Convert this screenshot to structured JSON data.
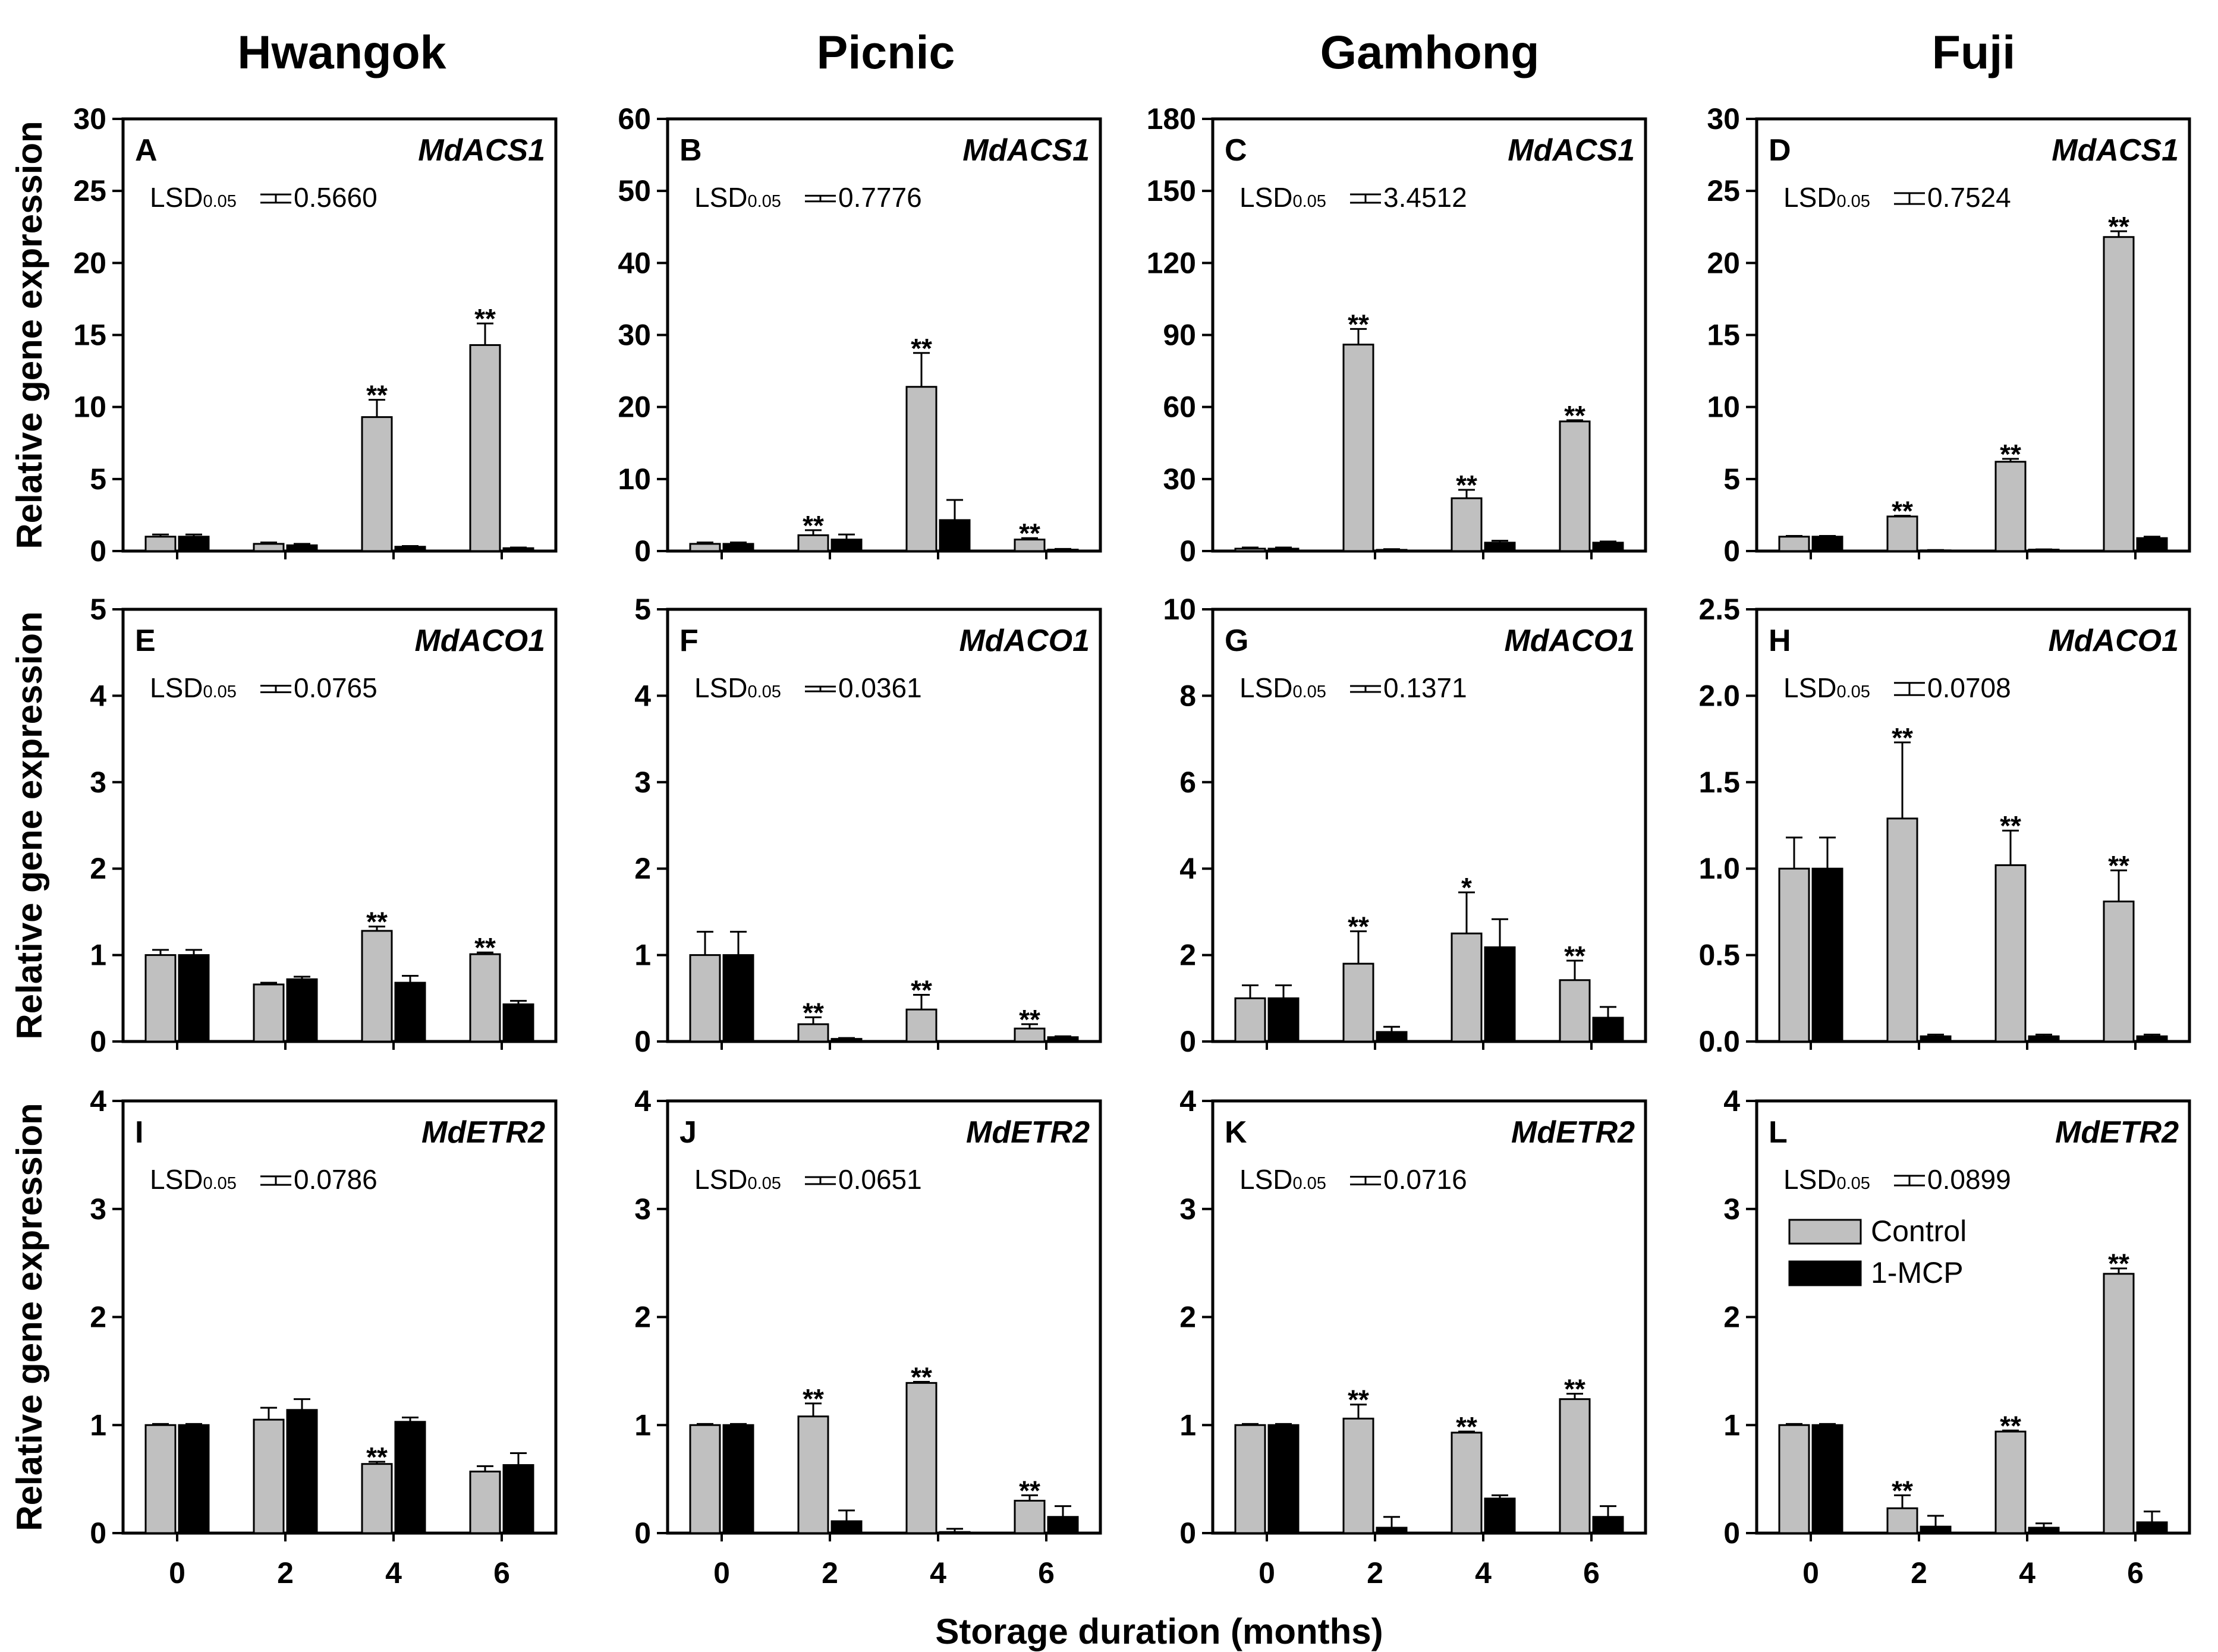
{
  "figure": {
    "column_titles": [
      "Hwangok",
      "Picnic",
      "Gamhong",
      "Fuji"
    ],
    "ylabel": "Relative gene expression",
    "xlabel": "Storage duration (months)",
    "lsd_prefix": "LSD",
    "lsd_subscript": "0.05",
    "colors": {
      "control": "#c0c0c0",
      "mcp": "#000000"
    }
  },
  "legend": {
    "placement": "panel L, upper-left inside plot",
    "entries": [
      {
        "name": "Control",
        "color": "#c0c0c0"
      },
      {
        "name": "1-MCP",
        "color": "#000000"
      }
    ]
  },
  "chart_data": [
    {
      "type": "bar",
      "panel": "A",
      "cultivar": "Hwangok",
      "gene": "MdACS1",
      "lsd": "0.5660",
      "lsd_value": 0.566,
      "categories": [
        "0",
        "2",
        "4",
        "6"
      ],
      "ylim": [
        0,
        30
      ],
      "yticks": [
        0,
        5,
        10,
        15,
        20,
        25,
        30
      ],
      "series": [
        {
          "name": "Control",
          "values": [
            1.0,
            0.5,
            9.3,
            14.3
          ],
          "errors": [
            0.15,
            0.1,
            1.2,
            1.5
          ],
          "stars": [
            "",
            "",
            "**",
            "**"
          ]
        },
        {
          "name": "1-MCP",
          "values": [
            1.0,
            0.4,
            0.3,
            0.2
          ],
          "errors": [
            0.15,
            0.1,
            0.05,
            0.05
          ],
          "stars": [
            "",
            "",
            "",
            ""
          ]
        }
      ]
    },
    {
      "type": "bar",
      "panel": "B",
      "cultivar": "Picnic",
      "gene": "MdACS1",
      "lsd": "0.7776",
      "lsd_value": 0.7776,
      "categories": [
        "0",
        "2",
        "4",
        "6"
      ],
      "ylim": [
        0,
        60
      ],
      "yticks": [
        0,
        10,
        20,
        30,
        40,
        50,
        60
      ],
      "series": [
        {
          "name": "Control",
          "values": [
            1.0,
            2.2,
            22.8,
            1.6
          ],
          "errors": [
            0.2,
            0.7,
            4.7,
            0.2
          ],
          "stars": [
            "",
            "**",
            "**",
            "**"
          ]
        },
        {
          "name": "1-MCP",
          "values": [
            1.0,
            1.6,
            4.3,
            0.2
          ],
          "errors": [
            0.2,
            0.7,
            2.8,
            0.1
          ],
          "stars": [
            "",
            "",
            "",
            ""
          ]
        }
      ]
    },
    {
      "type": "bar",
      "panel": "C",
      "cultivar": "Gamhong",
      "gene": "MdACS1",
      "lsd": "3.4512",
      "lsd_value": 3.4512,
      "categories": [
        "0",
        "2",
        "4",
        "6"
      ],
      "ylim": [
        0,
        180
      ],
      "yticks": [
        0,
        30,
        60,
        90,
        120,
        150,
        180
      ],
      "series": [
        {
          "name": "Control",
          "values": [
            1.0,
            86.0,
            22.0,
            54.0
          ],
          "errors": [
            0.5,
            6.5,
            3.5,
            0.5
          ],
          "stars": [
            "",
            "**",
            "**",
            "**"
          ]
        },
        {
          "name": "1-MCP",
          "values": [
            1.0,
            0.5,
            3.5,
            3.5
          ],
          "errors": [
            0.5,
            0.3,
            0.8,
            0.5
          ],
          "stars": [
            "",
            "",
            "",
            ""
          ]
        }
      ]
    },
    {
      "type": "bar",
      "panel": "D",
      "cultivar": "Fuji",
      "gene": "MdACS1",
      "lsd": "0.7524",
      "lsd_value": 0.7524,
      "categories": [
        "0",
        "2",
        "4",
        "6"
      ],
      "ylim": [
        0,
        30
      ],
      "yticks": [
        0,
        5,
        10,
        15,
        20,
        25,
        30
      ],
      "series": [
        {
          "name": "Control",
          "values": [
            1.0,
            2.4,
            6.2,
            21.8
          ],
          "errors": [
            0.05,
            0.05,
            0.2,
            0.4
          ],
          "stars": [
            "",
            "**",
            "**",
            "**"
          ]
        },
        {
          "name": "1-MCP",
          "values": [
            1.0,
            0.05,
            0.1,
            0.9
          ],
          "errors": [
            0.05,
            0.02,
            0.02,
            0.1
          ],
          "stars": [
            "",
            "",
            "",
            ""
          ]
        }
      ]
    },
    {
      "type": "bar",
      "panel": "E",
      "cultivar": "Hwangok",
      "gene": "MdACO1",
      "lsd": "0.0765",
      "lsd_value": 0.0765,
      "categories": [
        "0",
        "2",
        "4",
        "6"
      ],
      "ylim": [
        0,
        5
      ],
      "yticks": [
        0,
        1,
        2,
        3,
        4,
        5
      ],
      "series": [
        {
          "name": "Control",
          "values": [
            1.0,
            0.66,
            1.28,
            1.01
          ],
          "errors": [
            0.06,
            0.02,
            0.05,
            0.02
          ],
          "stars": [
            "",
            "",
            "**",
            "**"
          ]
        },
        {
          "name": "1-MCP",
          "values": [
            1.0,
            0.72,
            0.68,
            0.43
          ],
          "errors": [
            0.06,
            0.03,
            0.08,
            0.04
          ],
          "stars": [
            "",
            "",
            "",
            ""
          ]
        }
      ]
    },
    {
      "type": "bar",
      "panel": "F",
      "cultivar": "Picnic",
      "gene": "MdACO1",
      "lsd": "0.0361",
      "lsd_value": 0.0361,
      "categories": [
        "0",
        "2",
        "4",
        "6"
      ],
      "ylim": [
        0,
        5
      ],
      "yticks": [
        0,
        1,
        2,
        3,
        4,
        5
      ],
      "series": [
        {
          "name": "Control",
          "values": [
            1.0,
            0.2,
            0.37,
            0.15
          ],
          "errors": [
            0.27,
            0.08,
            0.17,
            0.05
          ],
          "stars": [
            "",
            "**",
            "**",
            "**"
          ]
        },
        {
          "name": "1-MCP",
          "values": [
            1.0,
            0.03,
            0.0,
            0.05
          ],
          "errors": [
            0.27,
            0.01,
            0.0,
            0.01
          ],
          "stars": [
            "",
            "",
            "",
            ""
          ]
        }
      ]
    },
    {
      "type": "bar",
      "panel": "G",
      "cultivar": "Gamhong",
      "gene": "MdACO1",
      "lsd": "0.1371",
      "lsd_value": 0.1371,
      "categories": [
        "0",
        "2",
        "4",
        "6"
      ],
      "ylim": [
        0,
        10
      ],
      "yticks": [
        0,
        2,
        4,
        6,
        8,
        10
      ],
      "series": [
        {
          "name": "Control",
          "values": [
            1.0,
            1.8,
            2.5,
            1.42
          ],
          "errors": [
            0.3,
            0.75,
            0.95,
            0.45
          ],
          "stars": [
            "",
            "**",
            "*",
            "**"
          ]
        },
        {
          "name": "1-MCP",
          "values": [
            1.0,
            0.22,
            2.18,
            0.55
          ],
          "errors": [
            0.3,
            0.12,
            0.65,
            0.25
          ],
          "stars": [
            "",
            "",
            "",
            ""
          ]
        }
      ]
    },
    {
      "type": "bar",
      "panel": "H",
      "cultivar": "Fuji",
      "gene": "MdACO1",
      "lsd": "0.0708",
      "lsd_value": 0.0708,
      "categories": [
        "0",
        "2",
        "4",
        "6"
      ],
      "ylim": [
        0,
        2.5
      ],
      "yticks": [
        "0.0",
        "0.5",
        "1.0",
        "1.5",
        "2.0",
        "2.5"
      ],
      "series": [
        {
          "name": "Control",
          "values": [
            1.0,
            1.29,
            1.02,
            0.81
          ],
          "errors": [
            0.18,
            0.44,
            0.2,
            0.18
          ],
          "stars": [
            "",
            "**",
            "**",
            "**"
          ]
        },
        {
          "name": "1-MCP",
          "values": [
            1.0,
            0.03,
            0.03,
            0.03
          ],
          "errors": [
            0.18,
            0.01,
            0.01,
            0.01
          ],
          "stars": [
            "",
            "",
            "",
            ""
          ]
        }
      ]
    },
    {
      "type": "bar",
      "panel": "I",
      "cultivar": "Hwangok",
      "gene": "MdETR2",
      "lsd": "0.0786",
      "lsd_value": 0.0786,
      "categories": [
        "0",
        "2",
        "4",
        "6"
      ],
      "ylim": [
        0,
        4
      ],
      "yticks": [
        0,
        1,
        2,
        3,
        4
      ],
      "series": [
        {
          "name": "Control",
          "values": [
            1.0,
            1.05,
            0.64,
            0.57
          ],
          "errors": [
            0.01,
            0.11,
            0.02,
            0.05
          ],
          "stars": [
            "",
            "",
            "**",
            ""
          ]
        },
        {
          "name": "1-MCP",
          "values": [
            1.0,
            1.14,
            1.03,
            0.63
          ],
          "errors": [
            0.01,
            0.1,
            0.04,
            0.11
          ],
          "stars": [
            "",
            "",
            "",
            ""
          ]
        }
      ]
    },
    {
      "type": "bar",
      "panel": "J",
      "cultivar": "Picnic",
      "gene": "MdETR2",
      "lsd": "0.0651",
      "lsd_value": 0.0651,
      "categories": [
        "0",
        "2",
        "4",
        "6"
      ],
      "ylim": [
        0,
        4
      ],
      "yticks": [
        0,
        1,
        2,
        3,
        4
      ],
      "series": [
        {
          "name": "Control",
          "values": [
            1.0,
            1.08,
            1.39,
            0.3
          ],
          "errors": [
            0.01,
            0.12,
            0.01,
            0.05
          ],
          "stars": [
            "",
            "**",
            "**",
            "**"
          ]
        },
        {
          "name": "1-MCP",
          "values": [
            1.0,
            0.11,
            0.01,
            0.15
          ],
          "errors": [
            0.01,
            0.1,
            0.03,
            0.1
          ],
          "stars": [
            "",
            "",
            "",
            ""
          ]
        }
      ]
    },
    {
      "type": "bar",
      "panel": "K",
      "cultivar": "Gamhong",
      "gene": "MdETR2",
      "lsd": "0.0716",
      "lsd_value": 0.0716,
      "categories": [
        "0",
        "2",
        "4",
        "6"
      ],
      "ylim": [
        0,
        4
      ],
      "yticks": [
        0,
        1,
        2,
        3,
        4
      ],
      "series": [
        {
          "name": "Control",
          "values": [
            1.0,
            1.06,
            0.93,
            1.24
          ],
          "errors": [
            0.01,
            0.13,
            0.01,
            0.05
          ],
          "stars": [
            "",
            "**",
            "**",
            "**"
          ]
        },
        {
          "name": "1-MCP",
          "values": [
            1.0,
            0.05,
            0.32,
            0.15
          ],
          "errors": [
            0.01,
            0.1,
            0.03,
            0.1
          ],
          "stars": [
            "",
            "",
            "",
            ""
          ]
        }
      ]
    },
    {
      "type": "bar",
      "panel": "L",
      "cultivar": "Fuji",
      "gene": "MdETR2",
      "lsd": "0.0899",
      "lsd_value": 0.0899,
      "categories": [
        "0",
        "2",
        "4",
        "6"
      ],
      "ylim": [
        0,
        4
      ],
      "yticks": [
        0,
        1,
        2,
        3,
        4
      ],
      "series": [
        {
          "name": "Control",
          "values": [
            1.0,
            0.23,
            0.94,
            2.4
          ],
          "errors": [
            0.01,
            0.12,
            0.01,
            0.05
          ],
          "stars": [
            "",
            "**",
            "**",
            "**"
          ]
        },
        {
          "name": "1-MCP",
          "values": [
            1.0,
            0.06,
            0.05,
            0.1
          ],
          "errors": [
            0.01,
            0.1,
            0.04,
            0.1
          ],
          "stars": [
            "",
            "",
            "",
            ""
          ]
        }
      ]
    }
  ]
}
